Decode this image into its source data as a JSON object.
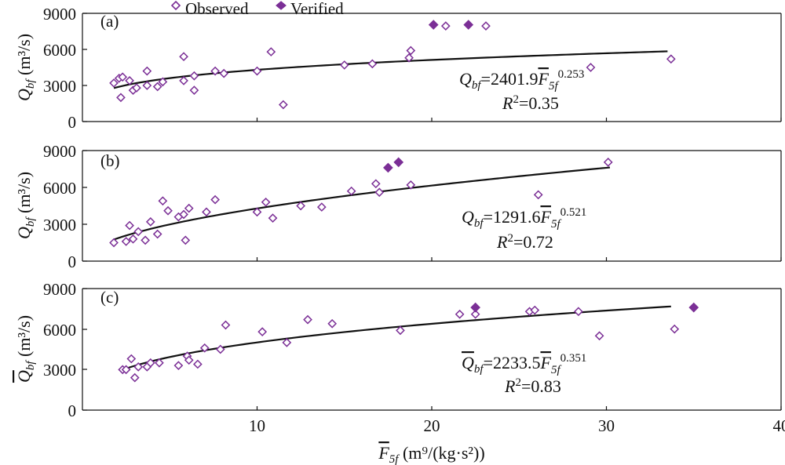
{
  "legend": {
    "observed_label": "Observed",
    "verified_label": "Verified"
  },
  "xaxis": {
    "label_main": "F",
    "label_sub": "5f",
    "label_unit": " (m⁹/(kg·s²))",
    "ticks": [
      "10",
      "20",
      "30",
      "40"
    ]
  },
  "yticks": [
    "0",
    "3000",
    "6000",
    "9000"
  ],
  "panels": [
    {
      "tag": "(a)",
      "ylabel_main": "Q",
      "ylabel_sub": "bf",
      "ylabel_unit": " (m³/s)",
      "ylabel_bar": false,
      "eq_lhs": "Q",
      "eq_lhs_sub": "bf",
      "eq_coef": "=2401.9",
      "eq_var": "F",
      "eq_var_sub": "5f",
      "eq_exp": "0.253",
      "r2_lhs": "R",
      "r2_sup": "2",
      "r2_val": "=0.35"
    },
    {
      "tag": "(b)",
      "ylabel_main": "Q",
      "ylabel_sub": "bf",
      "ylabel_unit": " (m³/s)",
      "ylabel_bar": false,
      "eq_lhs": "Q",
      "eq_lhs_sub": "bf",
      "eq_coef": "=1291.6",
      "eq_var": "F",
      "eq_var_sub": "5f",
      "eq_exp": "0.521",
      "r2_lhs": "R",
      "r2_sup": "2",
      "r2_val": "=0.72"
    },
    {
      "tag": "(c)",
      "ylabel_main": "Q",
      "ylabel_sub": "bf",
      "ylabel_unit": " (m³/s)",
      "ylabel_bar": true,
      "eq_lhs": "Q",
      "eq_lhs_sub": "bf",
      "eq_coef": "=2233.5",
      "eq_var": "F",
      "eq_var_sub": "5f",
      "eq_exp": "0.351",
      "r2_lhs": "R",
      "r2_sup": "2",
      "r2_val": "=0.83"
    }
  ],
  "chart_data": [
    {
      "type": "scatter",
      "panel": "(a)",
      "xlim": [
        0,
        40
      ],
      "ylim": [
        0,
        9000
      ],
      "yticks": [
        0,
        3000,
        6000,
        9000
      ],
      "xticks": [
        10,
        20,
        30,
        40
      ],
      "grid": false,
      "legend_position": "top-left",
      "colors": {
        "marker": "#7b2f96",
        "fit": "#111111"
      },
      "series": [
        {
          "name": "Observed",
          "marker": "open-diamond",
          "points": [
            [
              1.8,
              3200
            ],
            [
              2.1,
              3600
            ],
            [
              2.3,
              3700
            ],
            [
              2.2,
              2000
            ],
            [
              2.7,
              3400
            ],
            [
              2.9,
              2600
            ],
            [
              3.1,
              2800
            ],
            [
              3.7,
              4200
            ],
            [
              3.7,
              3000
            ],
            [
              4.3,
              2900
            ],
            [
              4.6,
              3300
            ],
            [
              5.8,
              5400
            ],
            [
              5.8,
              3400
            ],
            [
              6.4,
              2600
            ],
            [
              6.4,
              3800
            ],
            [
              7.6,
              4200
            ],
            [
              8.1,
              4000
            ],
            [
              10,
              4200
            ],
            [
              10.8,
              5800
            ],
            [
              11.5,
              1400
            ],
            [
              15,
              4700
            ],
            [
              16.6,
              4800
            ],
            [
              18.7,
              5300
            ],
            [
              18.8,
              5900
            ],
            [
              20.8,
              7950
            ],
            [
              23.1,
              7950
            ],
            [
              29.1,
              4500
            ],
            [
              33.7,
              5200
            ]
          ]
        },
        {
          "name": "Verified",
          "marker": "filled-diamond",
          "points": [
            [
              20.1,
              8050
            ],
            [
              22.1,
              8050
            ]
          ]
        }
      ],
      "fit": {
        "coefficient": 2401.9,
        "exponent": 0.253,
        "x_range": [
          1.8,
          33.5
        ],
        "r2": 0.35
      }
    },
    {
      "type": "scatter",
      "panel": "(b)",
      "xlim": [
        0,
        40
      ],
      "ylim": [
        0,
        9000
      ],
      "yticks": [
        0,
        3000,
        6000,
        9000
      ],
      "xticks": [
        10,
        20,
        30,
        40
      ],
      "grid": false,
      "colors": {
        "marker": "#7b2f96",
        "fit": "#111111"
      },
      "series": [
        {
          "name": "Observed",
          "marker": "open-diamond",
          "points": [
            [
              1.8,
              1500
            ],
            [
              2.5,
              1600
            ],
            [
              2.7,
              2900
            ],
            [
              2.9,
              1800
            ],
            [
              3.2,
              2400
            ],
            [
              3.6,
              1700
            ],
            [
              3.9,
              3200
            ],
            [
              4.3,
              2200
            ],
            [
              4.6,
              4900
            ],
            [
              4.9,
              4100
            ],
            [
              5.5,
              3600
            ],
            [
              5.8,
              3800
            ],
            [
              5.9,
              1700
            ],
            [
              6.1,
              4300
            ],
            [
              7.1,
              4000
            ],
            [
              7.6,
              5000
            ],
            [
              10,
              4000
            ],
            [
              10.5,
              4800
            ],
            [
              10.9,
              3500
            ],
            [
              12.5,
              4500
            ],
            [
              13.7,
              4400
            ],
            [
              15.4,
              5700
            ],
            [
              16.8,
              6300
            ],
            [
              17,
              5600
            ],
            [
              18.8,
              6200
            ],
            [
              26.1,
              5400
            ],
            [
              30.1,
              8050
            ]
          ]
        },
        {
          "name": "Verified",
          "marker": "filled-diamond",
          "points": [
            [
              17.5,
              7600
            ],
            [
              18.1,
              8050
            ]
          ]
        }
      ],
      "fit": {
        "coefficient": 1291.6,
        "exponent": 0.521,
        "x_range": [
          1.8,
          30.2
        ],
        "r2": 0.72
      }
    },
    {
      "type": "scatter",
      "panel": "(c)",
      "xlim": [
        0,
        40
      ],
      "ylim": [
        0,
        9000
      ],
      "yticks": [
        0,
        3000,
        6000,
        9000
      ],
      "xticks": [
        10,
        20,
        30,
        40
      ],
      "grid": false,
      "colors": {
        "marker": "#7b2f96",
        "fit": "#111111"
      },
      "series": [
        {
          "name": "Observed",
          "marker": "open-diamond",
          "points": [
            [
              2.3,
              3000
            ],
            [
              2.5,
              3000
            ],
            [
              2.8,
              3800
            ],
            [
              3,
              2400
            ],
            [
              3.2,
              3200
            ],
            [
              3.7,
              3200
            ],
            [
              3.9,
              3500
            ],
            [
              4.4,
              3500
            ],
            [
              5.5,
              3300
            ],
            [
              6,
              4000
            ],
            [
              6.1,
              3700
            ],
            [
              6.6,
              3400
            ],
            [
              7,
              4600
            ],
            [
              7.9,
              4500
            ],
            [
              8.2,
              6300
            ],
            [
              10.3,
              5800
            ],
            [
              11.7,
              5000
            ],
            [
              12.9,
              6700
            ],
            [
              14.3,
              6400
            ],
            [
              18.2,
              5900
            ],
            [
              21.6,
              7100
            ],
            [
              22.5,
              7100
            ],
            [
              25.6,
              7300
            ],
            [
              25.9,
              7400
            ],
            [
              28.4,
              7300
            ],
            [
              29.6,
              5500
            ],
            [
              33.9,
              6000
            ]
          ]
        },
        {
          "name": "Verified",
          "marker": "filled-diamond",
          "points": [
            [
              22.5,
              7600
            ],
            [
              35,
              7600
            ]
          ]
        }
      ],
      "fit": {
        "coefficient": 2233.5,
        "exponent": 0.351,
        "x_range": [
          2.3,
          33.7
        ],
        "r2": 0.83
      }
    }
  ]
}
